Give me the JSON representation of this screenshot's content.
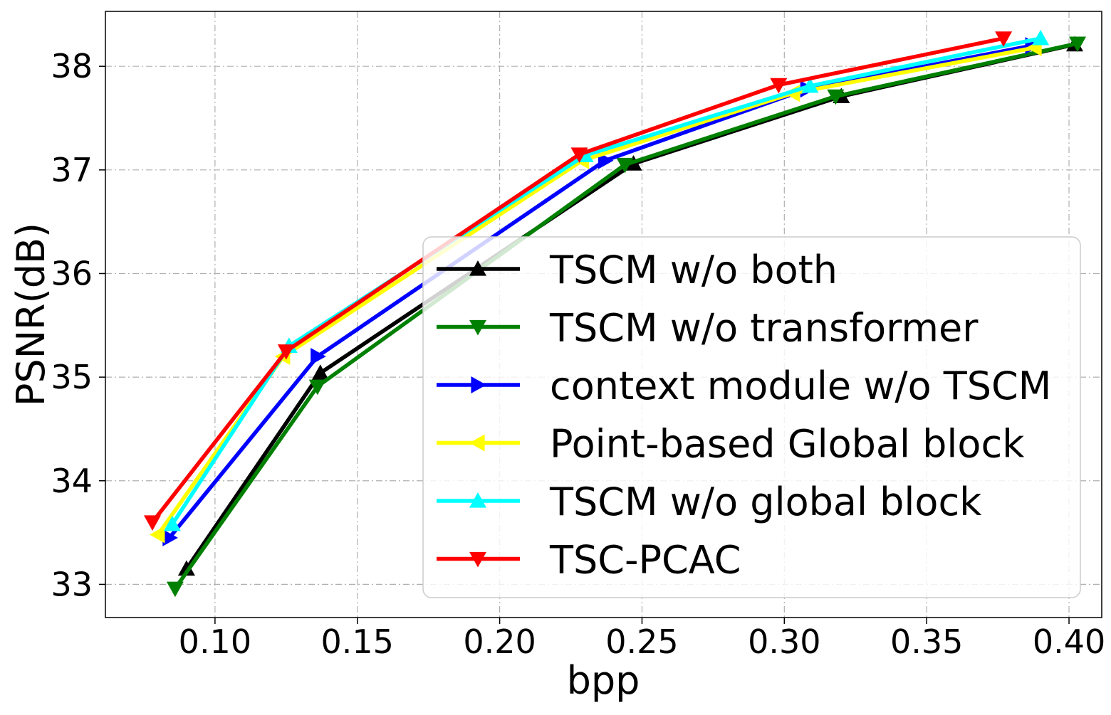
{
  "chart_data": {
    "type": "line",
    "title": "",
    "xlabel": "bpp",
    "ylabel": "PSNR(dB)",
    "xlim": [
      0.0615,
      0.4115
    ],
    "ylim": [
      32.68,
      38.53
    ],
    "xticks": [
      0.1,
      0.15,
      0.2,
      0.25,
      0.3,
      0.35,
      0.4
    ],
    "xtick_labels": [
      "0.10",
      "0.15",
      "0.20",
      "0.25",
      "0.30",
      "0.35",
      "0.40"
    ],
    "yticks": [
      33,
      34,
      35,
      36,
      37,
      38
    ],
    "ytick_labels": [
      "33",
      "34",
      "35",
      "36",
      "37",
      "38"
    ],
    "grid": true,
    "legend_position": "lower-right",
    "series": [
      {
        "name": "TSCM w/o both",
        "color": "#000000",
        "marker": "triangle-up",
        "x": [
          0.09,
          0.137,
          0.247,
          0.32,
          0.402
        ],
        "y": [
          33.15,
          35.04,
          37.06,
          37.71,
          38.21
        ]
      },
      {
        "name": "TSCM w/o transformer",
        "color": "#008000",
        "marker": "triangle-down",
        "x": [
          0.086,
          0.136,
          0.244,
          0.318,
          0.403
        ],
        "y": [
          32.96,
          34.91,
          37.05,
          37.71,
          38.22
        ]
      },
      {
        "name": "context module w/o TSCM",
        "color": "#0000ff",
        "marker": "triangle-right",
        "x": [
          0.084,
          0.136,
          0.237,
          0.308,
          0.387
        ],
        "y": [
          33.45,
          35.2,
          37.09,
          37.78,
          38.2
        ]
      },
      {
        "name": "Point-based Global block",
        "color": "#ffff00",
        "marker": "triangle-left",
        "x": [
          0.08,
          0.124,
          0.229,
          0.303,
          0.388
        ],
        "y": [
          33.48,
          35.2,
          37.09,
          37.74,
          38.18
        ]
      },
      {
        "name": "TSCM w/o global block",
        "color": "#00ffff",
        "marker": "triangle-up",
        "x": [
          0.085,
          0.126,
          0.23,
          0.309,
          0.39
        ],
        "y": [
          33.58,
          35.3,
          37.14,
          37.81,
          38.27
        ]
      },
      {
        "name": "TSC-PCAC",
        "color": "#ff0000",
        "marker": "triangle-down",
        "x": [
          0.078,
          0.125,
          0.228,
          0.298,
          0.377
        ],
        "y": [
          33.6,
          35.25,
          37.15,
          37.82,
          38.27
        ]
      }
    ]
  }
}
